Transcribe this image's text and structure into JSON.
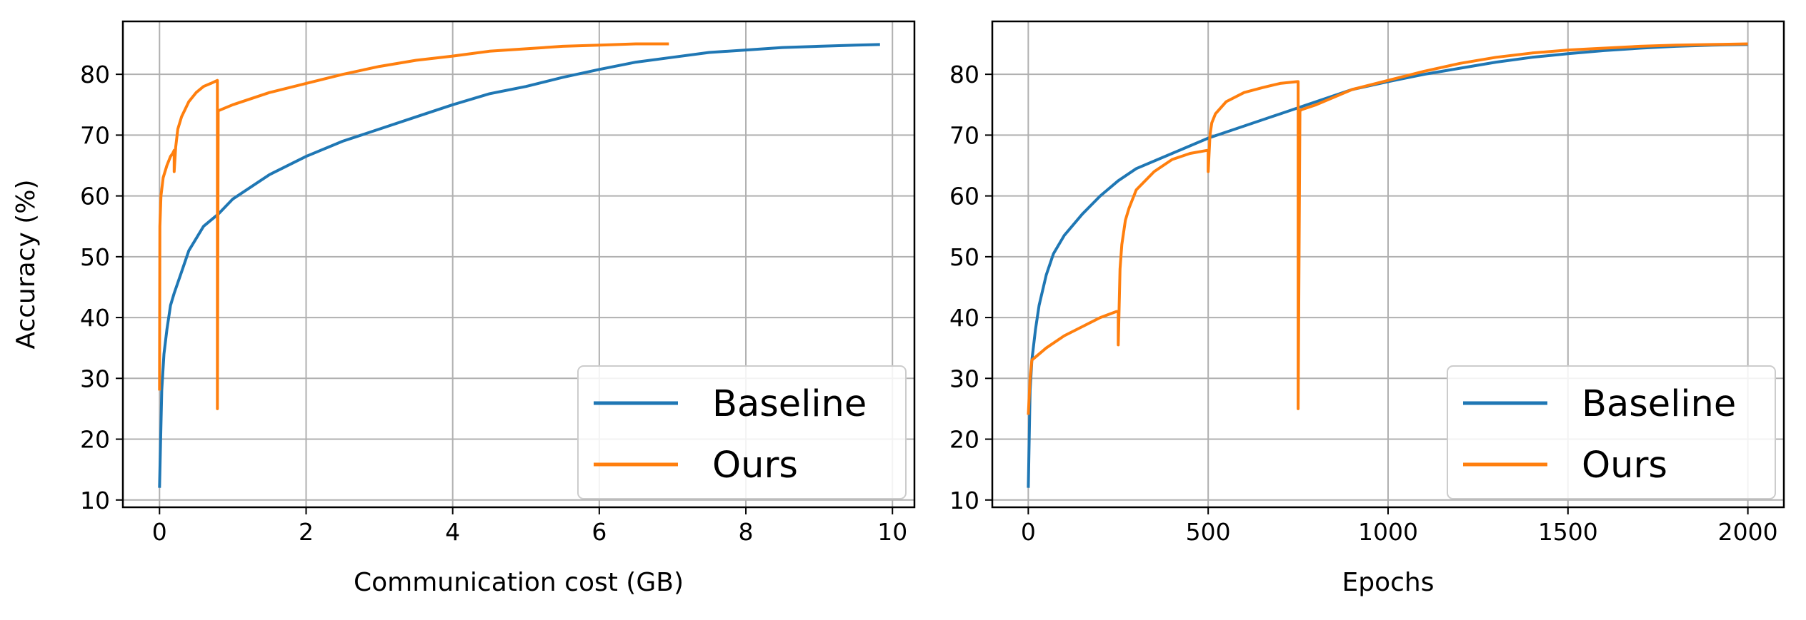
{
  "figure": {
    "colors": {
      "baseline": "#1f77b4",
      "ours": "#ff7f0e",
      "grid": "#b0b0b0",
      "axis": "#000000"
    }
  },
  "chart_data": [
    {
      "type": "line",
      "xlabel": "Communication cost (GB)",
      "ylabel": "Accuracy (%)",
      "xlim": [
        -0.5,
        10.3
      ],
      "ylim": [
        8.8,
        88.7
      ],
      "xticks": [
        0,
        2,
        4,
        6,
        8,
        10
      ],
      "yticks": [
        10,
        20,
        30,
        40,
        50,
        60,
        70,
        80
      ],
      "grid": true,
      "legend": {
        "placement": "lower-right",
        "entries": [
          "Baseline",
          "Ours"
        ]
      },
      "series": [
        {
          "name": "Baseline",
          "color": "#1f77b4",
          "x": [
            0.0,
            0.03,
            0.06,
            0.1,
            0.15,
            0.2,
            0.3,
            0.4,
            0.5,
            0.6,
            0.7,
            0.8,
            1.0,
            1.5,
            2.0,
            2.5,
            3.0,
            3.5,
            4.0,
            4.5,
            5.0,
            5.5,
            6.0,
            6.5,
            7.0,
            7.5,
            8.0,
            8.5,
            9.0,
            9.5,
            9.83
          ],
          "y": [
            12,
            28,
            34,
            38,
            42,
            44,
            47.5,
            51,
            53,
            55,
            56,
            57,
            59.5,
            63.5,
            66.5,
            69,
            71,
            73,
            75,
            76.8,
            78,
            79.5,
            80.8,
            82,
            82.8,
            83.6,
            84,
            84.4,
            84.6,
            84.8,
            84.9
          ]
        },
        {
          "name": "Ours",
          "color": "#ff7f0e",
          "x": [
            0.0,
            0.005,
            0.02,
            0.05,
            0.1,
            0.15,
            0.18,
            0.2,
            0.2,
            0.22,
            0.25,
            0.3,
            0.4,
            0.5,
            0.6,
            0.7,
            0.79,
            0.79,
            0.8,
            0.8,
            1.0,
            1.5,
            2.0,
            2.5,
            3.0,
            3.5,
            4.0,
            4.5,
            5.0,
            5.5,
            6.0,
            6.5,
            6.95
          ],
          "y": [
            28,
            55,
            60,
            63,
            65,
            66.5,
            67,
            67.5,
            64,
            68,
            71,
            73,
            75.5,
            77,
            78,
            78.5,
            79,
            25,
            73.5,
            74,
            75,
            77,
            78.5,
            80,
            81.3,
            82.3,
            83,
            83.8,
            84.2,
            84.6,
            84.8,
            85,
            85
          ]
        }
      ]
    },
    {
      "type": "line",
      "xlabel": "Epochs",
      "ylabel": "",
      "xlim": [
        -100,
        2100
      ],
      "ylim": [
        8.8,
        88.7
      ],
      "xticks": [
        0,
        500,
        1000,
        1500,
        2000
      ],
      "yticks": [
        10,
        20,
        30,
        40,
        50,
        60,
        70,
        80
      ],
      "grid": true,
      "legend": {
        "placement": "lower-right",
        "entries": [
          "Baseline",
          "Ours"
        ]
      },
      "series": [
        {
          "name": "Baseline",
          "color": "#1f77b4",
          "x": [
            0,
            5,
            10,
            20,
            30,
            50,
            70,
            100,
            150,
            200,
            250,
            300,
            400,
            500,
            600,
            700,
            800,
            900,
            1000,
            1100,
            1200,
            1300,
            1400,
            1500,
            1600,
            1700,
            1800,
            1900,
            2000
          ],
          "y": [
            12,
            28,
            33,
            38,
            42,
            47,
            50.5,
            53.5,
            57,
            60,
            62.5,
            64.5,
            67,
            69.5,
            71.5,
            73.5,
            75.5,
            77.5,
            78.8,
            80,
            81,
            82,
            82.8,
            83.4,
            83.9,
            84.3,
            84.6,
            84.8,
            84.9
          ]
        },
        {
          "name": "Ours",
          "color": "#ff7f0e",
          "x": [
            0,
            5,
            10,
            30,
            50,
            100,
            150,
            200,
            245,
            250,
            250,
            255,
            260,
            270,
            280,
            300,
            350,
            400,
            450,
            498,
            500,
            500,
            505,
            510,
            520,
            550,
            600,
            650,
            700,
            748,
            750,
            750,
            755,
            760,
            800,
            900,
            1000,
            1100,
            1200,
            1300,
            1400,
            1500,
            1600,
            1700,
            1800,
            1900,
            2000
          ],
          "y": [
            24,
            30,
            33,
            34,
            35,
            37,
            38.5,
            40,
            41,
            41,
            35.5,
            48,
            52,
            56,
            58,
            61,
            64,
            66,
            67,
            67.5,
            67.5,
            64,
            70,
            72,
            73.5,
            75.5,
            77,
            77.8,
            78.5,
            78.8,
            78.8,
            25,
            74,
            74.2,
            75,
            77.5,
            79,
            80.5,
            81.8,
            82.8,
            83.5,
            84,
            84.3,
            84.6,
            84.8,
            84.9,
            85
          ]
        }
      ]
    }
  ]
}
